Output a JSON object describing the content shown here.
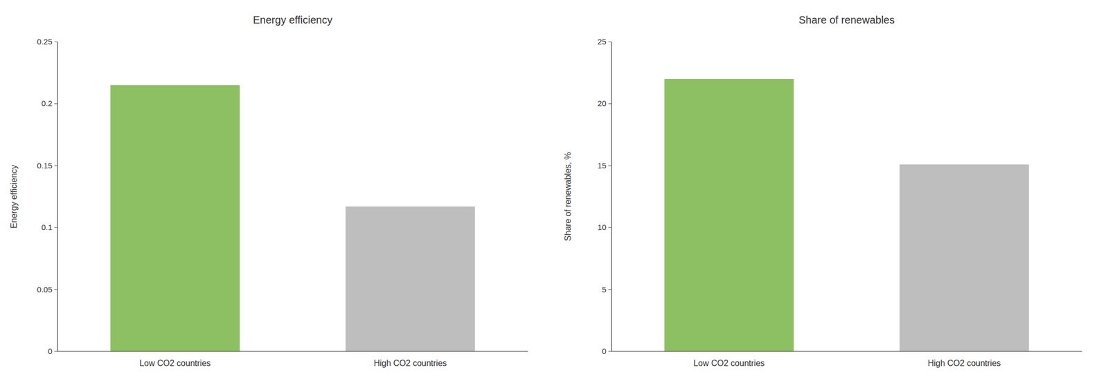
{
  "chart_data": [
    {
      "type": "bar",
      "title": "Energy efficiency",
      "ylabel": "Energy efficiency",
      "categories": [
        "Low CO2 countries",
        "High CO2 countries"
      ],
      "values": [
        0.215,
        0.117
      ],
      "colors": [
        "#8DC063",
        "#BEBEBE"
      ],
      "ylim": [
        0,
        0.25
      ],
      "yticks": [
        0,
        0.05,
        0.1,
        0.15,
        0.2,
        0.25
      ],
      "grid": false
    },
    {
      "type": "bar",
      "title": "Share of renewables",
      "ylabel": "Share of renewables, %",
      "categories": [
        "Low CO2 countries",
        "High CO2 countries"
      ],
      "values": [
        22.0,
        15.1
      ],
      "colors": [
        "#8DC063",
        "#BEBEBE"
      ],
      "ylim": [
        0,
        25
      ],
      "yticks": [
        0,
        5,
        10,
        15,
        20,
        25
      ],
      "grid": false
    }
  ]
}
